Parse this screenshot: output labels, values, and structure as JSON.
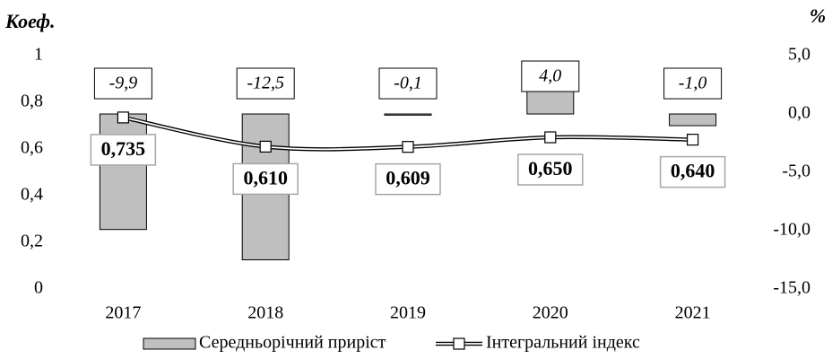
{
  "chart_data": {
    "type": "bar",
    "y_label": "Коеф.",
    "y2_label": "%",
    "categories": [
      "2017",
      "2018",
      "2019",
      "2020",
      "2021"
    ],
    "series": [
      {
        "name": "Середньорічний приріст",
        "type": "bar",
        "axis": "y2",
        "color": "#bfbfbf",
        "values": [
          -9.9,
          -12.5,
          -0.1,
          4.0,
          -1.0
        ],
        "value_labels": [
          "-9,9",
          "-12,5",
          "-0,1",
          "4,0",
          "-1,0"
        ]
      },
      {
        "name": "Інтегральний індекс",
        "type": "line",
        "color": "#000000",
        "values": [
          0.735,
          0.61,
          0.609,
          0.65,
          0.64
        ],
        "value_labels": [
          "0,735",
          "0,610",
          "0,609",
          "0,650",
          "0,640"
        ]
      }
    ],
    "ylim": [
      0,
      1
    ],
    "yticks": [
      0,
      {
        "value": 0.2,
        "label": "0,2"
      },
      {
        "value": 0.4,
        "label": "0,4"
      },
      {
        "value": 0.6,
        "label": "0,6"
      },
      {
        "value": 0.8,
        "label": "0,8"
      },
      1
    ],
    "y2lim": [
      -15,
      5
    ],
    "y2ticks": [
      {
        "value": -15,
        "label": "-15,0"
      },
      {
        "value": -10,
        "label": "-10,0"
      },
      {
        "value": -5,
        "label": "-5,0"
      },
      {
        "value": 0,
        "label": "0,0"
      },
      {
        "value": 5,
        "label": "5,0"
      }
    ],
    "legend": "bottom"
  }
}
